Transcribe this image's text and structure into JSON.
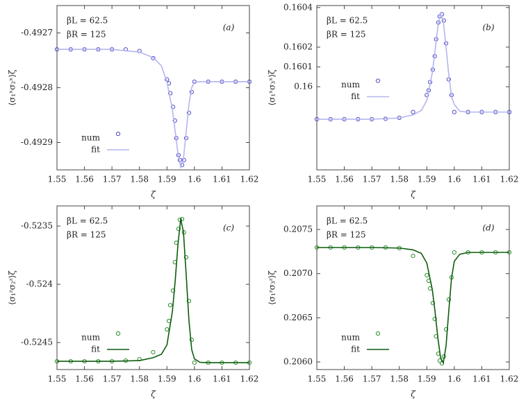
{
  "chart_data": [
    {
      "type": "scatter",
      "x_label": "ζ",
      "y_label": "⟨σ₁ˣσ₂ˣ⟩ζ",
      "panel_label": "(a)",
      "annotations": [
        "βL = 62.5",
        "βR = 125"
      ],
      "legend": "lower left",
      "xlim": [
        1.55,
        1.62
      ],
      "xticks": [
        1.55,
        1.56,
        1.57,
        1.58,
        1.59,
        1.6,
        1.61,
        1.62
      ],
      "ylim": [
        -0.49295,
        -0.49265
      ],
      "yticks": [
        -0.4927,
        -0.4928,
        -0.4929
      ],
      "series": [
        {
          "name": "num",
          "style": "points",
          "color": "#4b4bc4",
          "x": [
            1.55,
            1.555,
            1.56,
            1.565,
            1.57,
            1.575,
            1.58,
            1.585,
            1.59,
            1.5907,
            1.5912,
            1.5922,
            1.5929,
            1.5934,
            1.5942,
            1.5947,
            1.5955,
            1.5962,
            1.597,
            1.598,
            1.599,
            1.6,
            1.605,
            1.61,
            1.615,
            1.62
          ],
          "values": [
            -0.49273,
            -0.49273,
            -0.49273,
            -0.49273,
            -0.49273,
            -0.49273,
            -0.492733,
            -0.492746,
            -0.492785,
            -0.492792,
            -0.49281,
            -0.492835,
            -0.49286,
            -0.492892,
            -0.492923,
            -0.492932,
            -0.492941,
            -0.492932,
            -0.492892,
            -0.492846,
            -0.492808,
            -0.492789,
            -0.492789,
            -0.492789,
            -0.492789,
            -0.492789
          ]
        },
        {
          "name": "fit",
          "style": "line",
          "color": "#b4b4f0",
          "x": [
            1.55,
            1.57,
            1.58,
            1.585,
            1.588,
            1.59,
            1.592,
            1.593,
            1.594,
            1.595,
            1.596,
            1.597,
            1.598,
            1.599,
            1.6,
            1.602,
            1.605,
            1.62
          ],
          "values": [
            -0.49273,
            -0.49273,
            -0.492735,
            -0.492745,
            -0.49276,
            -0.49279,
            -0.49284,
            -0.49288,
            -0.49292,
            -0.492945,
            -0.49293,
            -0.49288,
            -0.49283,
            -0.4928,
            -0.49279,
            -0.492789,
            -0.492789,
            -0.492789
          ]
        }
      ]
    },
    {
      "type": "scatter",
      "x_label": "ζ",
      "y_label": "⟨σ₁ˣσ₃ˣ⟩ζ",
      "panel_label": "(b)",
      "annotations": [
        "βL = 62.5",
        "βR = 125"
      ],
      "legend": "center left",
      "xlim": [
        1.55,
        1.62
      ],
      "xticks": [
        1.55,
        1.56,
        1.57,
        1.58,
        1.59,
        1.6,
        1.61,
        1.62
      ],
      "ylim": [
        0.15958,
        0.16041
      ],
      "yticks": [
        0.1604,
        0.1602,
        0.1601,
        0.16
      ],
      "series": [
        {
          "name": "num",
          "style": "points",
          "color": "#4b4bc4",
          "x": [
            1.55,
            1.555,
            1.56,
            1.565,
            1.57,
            1.575,
            1.58,
            1.585,
            1.59,
            1.5907,
            1.5912,
            1.5922,
            1.5929,
            1.5934,
            1.5942,
            1.5947,
            1.5955,
            1.5962,
            1.597,
            1.598,
            1.599,
            1.6,
            1.605,
            1.61,
            1.615,
            1.62
          ],
          "values": [
            0.159836,
            0.159836,
            0.159836,
            0.159836,
            0.159836,
            0.159838,
            0.159843,
            0.159872,
            0.159958,
            0.159982,
            0.160023,
            0.160086,
            0.160154,
            0.16024,
            0.160324,
            0.160355,
            0.160366,
            0.160334,
            0.160219,
            0.160037,
            0.159958,
            0.159872,
            0.159872,
            0.159872,
            0.159872,
            0.159872
          ]
        },
        {
          "name": "fit",
          "style": "line",
          "color": "#b4b4f0",
          "x": [
            1.55,
            1.57,
            1.58,
            1.585,
            1.588,
            1.59,
            1.592,
            1.593,
            1.594,
            1.595,
            1.596,
            1.597,
            1.598,
            1.599,
            1.6,
            1.602,
            1.605,
            1.62
          ],
          "values": [
            0.159836,
            0.159836,
            0.159842,
            0.159858,
            0.15988,
            0.15993,
            0.16007,
            0.16018,
            0.1603,
            0.16037,
            0.16033,
            0.1602,
            0.16006,
            0.15995,
            0.15991,
            0.159876,
            0.159872,
            0.159872
          ]
        }
      ]
    },
    {
      "type": "scatter",
      "x_label": "ζ",
      "y_label": "⟨σ₁ᶻσ₂ᶻ⟩ζ",
      "panel_label": "(c)",
      "annotations": [
        "βL = 62.5",
        "βR = 125"
      ],
      "legend": "lower left",
      "xlim": [
        1.55,
        1.62
      ],
      "xticks": [
        1.55,
        1.56,
        1.57,
        1.58,
        1.59,
        1.6,
        1.61,
        1.62
      ],
      "ylim": [
        -0.524732,
        -0.523327
      ],
      "yticks": [
        -0.5235,
        -0.524,
        -0.5245
      ],
      "series": [
        {
          "name": "num",
          "style": "points",
          "color": "#2a8a2a",
          "x": [
            1.55,
            1.555,
            1.56,
            1.565,
            1.57,
            1.575,
            1.58,
            1.585,
            1.59,
            1.5907,
            1.5912,
            1.5922,
            1.5929,
            1.5934,
            1.5942,
            1.5947,
            1.5955,
            1.5962,
            1.597,
            1.598,
            1.599,
            1.6,
            1.605,
            1.61,
            1.615,
            1.62
          ],
          "values": [
            -0.524661,
            -0.524661,
            -0.524661,
            -0.524661,
            -0.524661,
            -0.524655,
            -0.524643,
            -0.524583,
            -0.524387,
            -0.524315,
            -0.524179,
            -0.524054,
            -0.52381,
            -0.523643,
            -0.523524,
            -0.523446,
            -0.52344,
            -0.523554,
            -0.523768,
            -0.524143,
            -0.524476,
            -0.524673,
            -0.524673,
            -0.524673,
            -0.524673,
            -0.524673
          ]
        },
        {
          "name": "fit",
          "style": "line",
          "color": "#0d5c0d",
          "x": [
            1.55,
            1.57,
            1.58,
            1.585,
            1.588,
            1.59,
            1.592,
            1.593,
            1.594,
            1.595,
            1.596,
            1.597,
            1.598,
            1.599,
            1.6,
            1.602,
            1.605,
            1.62
          ],
          "values": [
            -0.524661,
            -0.524661,
            -0.524655,
            -0.52463,
            -0.5246,
            -0.52452,
            -0.52423,
            -0.52397,
            -0.52366,
            -0.52344,
            -0.52355,
            -0.52392,
            -0.52431,
            -0.52456,
            -0.52464,
            -0.52467,
            -0.524673,
            -0.524673
          ]
        }
      ]
    },
    {
      "type": "scatter",
      "x_label": "ζ",
      "y_label": "⟨σ₁ᶻσ₃ᶻ⟩ζ",
      "panel_label": "(d)",
      "annotations": [
        "βL = 62.5",
        "βR = 125"
      ],
      "legend": "lower left",
      "xlim": [
        1.55,
        1.62
      ],
      "xticks": [
        1.55,
        1.56,
        1.57,
        1.58,
        1.59,
        1.6,
        1.61,
        1.62
      ],
      "ylim": [
        0.205914,
        0.207767
      ],
      "yticks": [
        0.2075,
        {
          "value": 0.207,
          "label": "0.2070"
        },
        0.2065,
        {
          "value": 0.206,
          "label": "0.2060"
        }
      ],
      "series": [
        {
          "name": "num",
          "style": "points",
          "color": "#2a8a2a",
          "x": [
            1.55,
            1.555,
            1.56,
            1.565,
            1.57,
            1.575,
            1.58,
            1.585,
            1.59,
            1.5907,
            1.5912,
            1.5922,
            1.5929,
            1.5934,
            1.5942,
            1.5947,
            1.5955,
            1.5962,
            1.597,
            1.598,
            1.599,
            1.6,
            1.605,
            1.61,
            1.615,
            1.62
          ],
          "values": [
            0.207296,
            0.207296,
            0.207296,
            0.207296,
            0.207296,
            0.207296,
            0.20729,
            0.207201,
            0.206982,
            0.206919,
            0.206832,
            0.206667,
            0.206487,
            0.20629,
            0.206094,
            0.206015,
            0.205984,
            0.206062,
            0.206369,
            0.206707,
            0.206958,
            0.207241,
            0.207241,
            0.207241,
            0.207241,
            0.207241
          ]
        },
        {
          "name": "fit",
          "style": "line",
          "color": "#0d5c0d",
          "x": [
            1.55,
            1.57,
            1.58,
            1.585,
            1.588,
            1.59,
            1.592,
            1.593,
            1.594,
            1.595,
            1.596,
            1.597,
            1.598,
            1.599,
            1.6,
            1.602,
            1.605,
            1.62
          ],
          "values": [
            0.207296,
            0.207296,
            0.20729,
            0.20727,
            0.20723,
            0.20712,
            0.20682,
            0.20657,
            0.20628,
            0.20605,
            0.20599,
            0.20618,
            0.20658,
            0.20695,
            0.20714,
            0.20722,
            0.20724,
            0.207241
          ]
        }
      ]
    }
  ]
}
